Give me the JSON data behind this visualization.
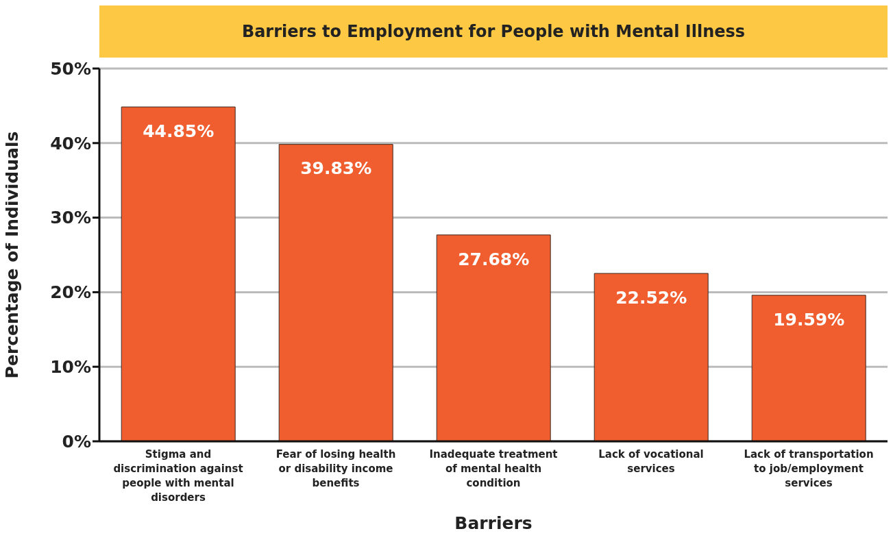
{
  "chart_data": {
    "type": "bar",
    "title": "Barriers to Employment for People with Mental Illness",
    "xlabel": "Barriers",
    "ylabel": "Percentage of Individuals",
    "categories": [
      "Stigma and discrimination against people with mental disorders",
      "Fear of losing health or disability income benefits",
      "Inadequate treatment of mental health condition",
      "Lack of vocational services",
      "Lack of transportation to job/employment services"
    ],
    "values": [
      44.85,
      39.83,
      27.68,
      22.52,
      19.59
    ],
    "value_labels": [
      "44.85%",
      "39.83%",
      "27.68%",
      "22.52%",
      "19.59%"
    ],
    "color": "#f05d2e",
    "ylim": [
      0,
      50
    ],
    "yticks": [
      {
        "value": 0,
        "label": "0%"
      },
      {
        "value": 10,
        "label": "10%"
      },
      {
        "value": 20,
        "label": "20%"
      },
      {
        "value": 30,
        "label": "30%"
      },
      {
        "value": 40,
        "label": "40%"
      },
      {
        "value": 50,
        "label": "50%"
      }
    ],
    "grid": "y",
    "legend": false
  }
}
